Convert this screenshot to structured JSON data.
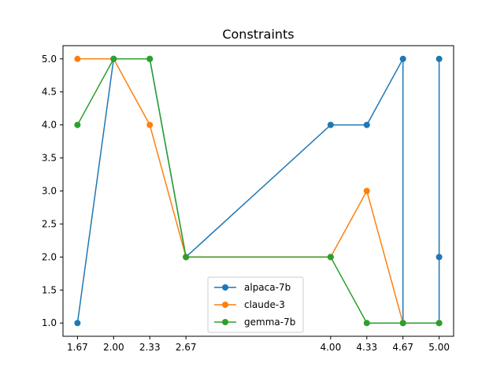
{
  "chart_data": {
    "type": "line",
    "title": "Constraints",
    "xlabel": "",
    "ylabel": "",
    "xlim": [
      1.5333,
      5.1333
    ],
    "ylim": [
      0.8,
      5.2
    ],
    "x_ticks": [
      {
        "value": 1.6667,
        "label": "1.67"
      },
      {
        "value": 2.0,
        "label": "2.00"
      },
      {
        "value": 2.3333,
        "label": "2.33"
      },
      {
        "value": 2.6667,
        "label": "2.67"
      },
      {
        "value": 4.0,
        "label": "4.00"
      },
      {
        "value": 4.3333,
        "label": "4.33"
      },
      {
        "value": 4.6667,
        "label": "4.67"
      },
      {
        "value": 5.0,
        "label": "5.00"
      }
    ],
    "y_ticks": [
      {
        "value": 1.0,
        "label": "1.0"
      },
      {
        "value": 1.5,
        "label": "1.5"
      },
      {
        "value": 2.0,
        "label": "2.0"
      },
      {
        "value": 2.5,
        "label": "2.5"
      },
      {
        "value": 3.0,
        "label": "3.0"
      },
      {
        "value": 3.5,
        "label": "3.5"
      },
      {
        "value": 4.0,
        "label": "4.0"
      },
      {
        "value": 4.5,
        "label": "4.5"
      },
      {
        "value": 5.0,
        "label": "5.0"
      }
    ],
    "grid": false,
    "legend": {
      "position": "bottom-center"
    },
    "series": [
      {
        "name": "alpaca-7b",
        "color": "#1f77b4",
        "points": [
          [
            1.6667,
            1.0
          ],
          [
            2.0,
            5.0
          ],
          [
            2.3333,
            5.0
          ],
          [
            2.6667,
            2.0
          ],
          [
            4.0,
            4.0
          ],
          [
            4.3333,
            4.0
          ],
          [
            4.6667,
            5.0
          ],
          [
            4.6667,
            1.0
          ],
          [
            5.0,
            1.0
          ],
          [
            5.0,
            2.0
          ],
          [
            5.0,
            5.0
          ]
        ]
      },
      {
        "name": "claude-3",
        "color": "#ff7f0e",
        "points": [
          [
            1.6667,
            5.0
          ],
          [
            2.0,
            5.0
          ],
          [
            2.3333,
            4.0
          ],
          [
            2.6667,
            2.0
          ],
          [
            4.0,
            2.0
          ],
          [
            4.3333,
            3.0
          ],
          [
            4.6667,
            1.0
          ],
          [
            5.0,
            1.0
          ]
        ]
      },
      {
        "name": "gemma-7b",
        "color": "#2ca02c",
        "points": [
          [
            1.6667,
            4.0
          ],
          [
            2.0,
            5.0
          ],
          [
            2.3333,
            5.0
          ],
          [
            2.6667,
            2.0
          ],
          [
            4.0,
            2.0
          ],
          [
            4.3333,
            1.0
          ],
          [
            4.6667,
            1.0
          ],
          [
            5.0,
            1.0
          ]
        ]
      }
    ]
  }
}
